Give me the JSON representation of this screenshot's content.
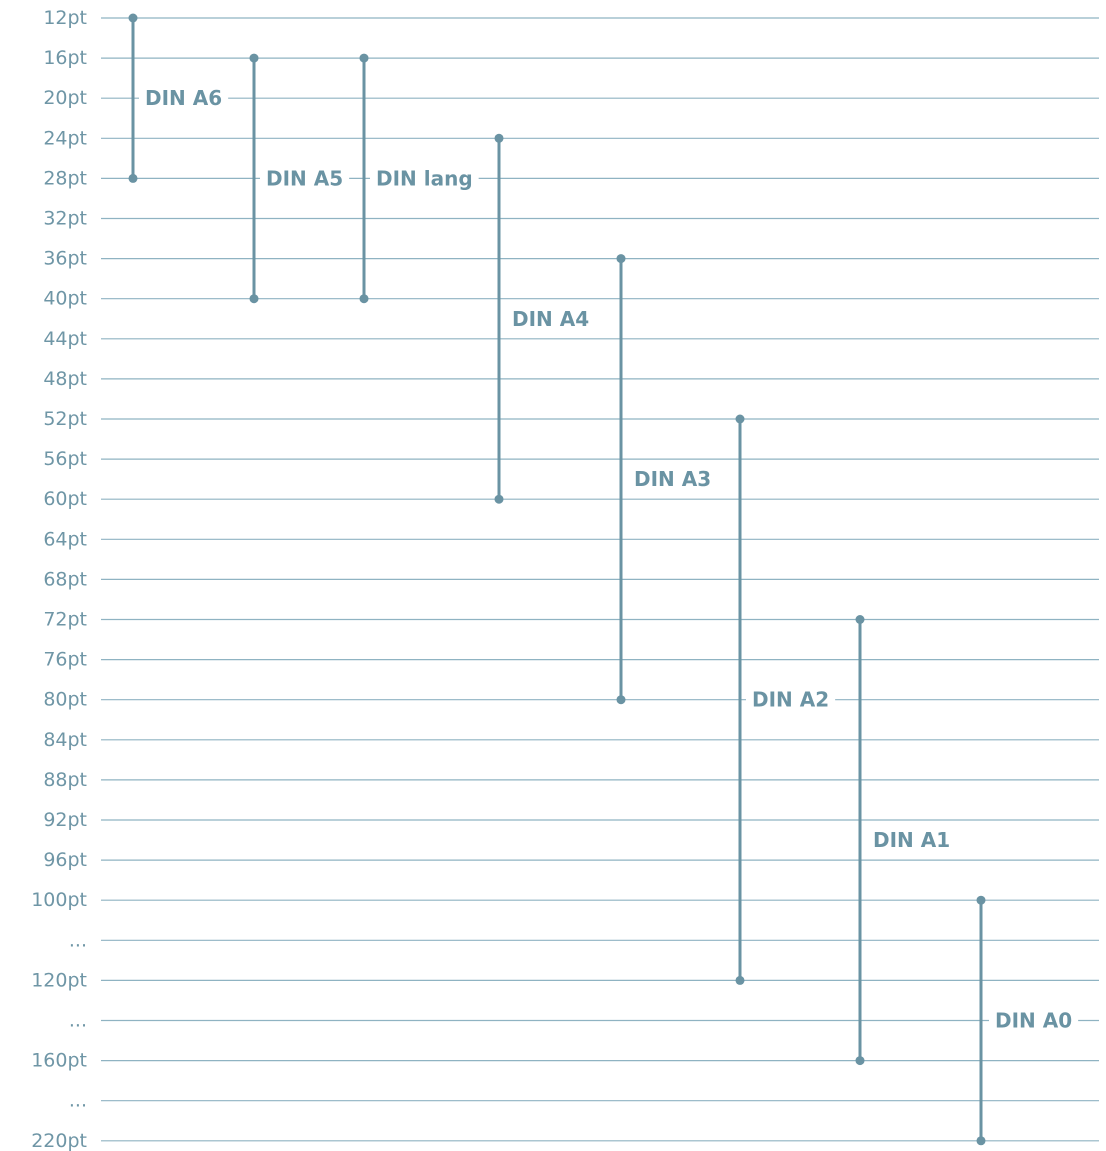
{
  "chart_data": {
    "type": "range",
    "ticks": [
      "12pt",
      "16pt",
      "20pt",
      "24pt",
      "28pt",
      "32pt",
      "36pt",
      "40pt",
      "44pt",
      "48pt",
      "52pt",
      "56pt",
      "60pt",
      "64pt",
      "68pt",
      "72pt",
      "76pt",
      "80pt",
      "84pt",
      "88pt",
      "92pt",
      "96pt",
      "100pt",
      "...",
      "120pt",
      "...",
      "160pt",
      "...",
      "220pt"
    ],
    "series": [
      {
        "name": "DIN A6",
        "from": "12pt",
        "to": "28pt"
      },
      {
        "name": "DIN A5",
        "from": "16pt",
        "to": "40pt"
      },
      {
        "name": "DIN lang",
        "from": "16pt",
        "to": "40pt"
      },
      {
        "name": "DIN A4",
        "from": "24pt",
        "to": "60pt"
      },
      {
        "name": "DIN A3",
        "from": "36pt",
        "to": "80pt"
      },
      {
        "name": "DIN A2",
        "from": "52pt",
        "to": "120pt"
      },
      {
        "name": "DIN A1",
        "from": "72pt",
        "to": "160pt"
      },
      {
        "name": "DIN A0",
        "from": "100pt",
        "to": "220pt"
      }
    ],
    "colors": {
      "line": "#6a93a3",
      "grid": "#8fb3c2",
      "text": "#6f96a6"
    },
    "grid": true
  }
}
